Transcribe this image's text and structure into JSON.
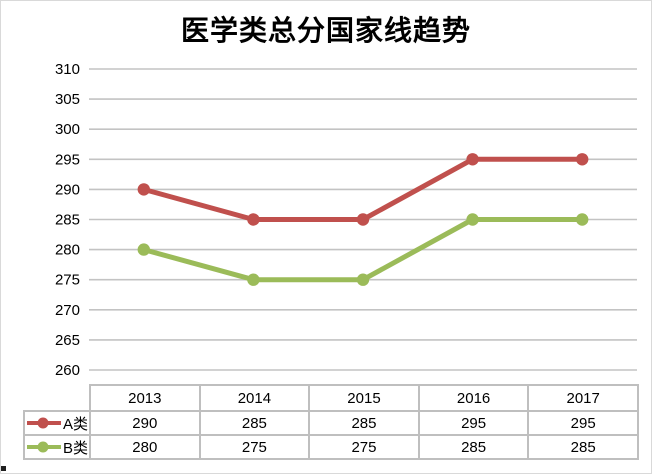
{
  "window": {
    "background": "#ffffff",
    "border_color": "#d9d9d9"
  },
  "chart_data": {
    "type": "line",
    "title": "医学类总分国家线趋势",
    "categories": [
      "2013",
      "2014",
      "2015",
      "2016",
      "2017"
    ],
    "series": [
      {
        "name": "A类",
        "color": "#C0504D",
        "values": [
          290,
          285,
          285,
          295,
          295
        ]
      },
      {
        "name": "B类",
        "color": "#9BBB59",
        "values": [
          280,
          275,
          275,
          285,
          285
        ]
      }
    ],
    "ylim": [
      260,
      310
    ],
    "yticks": [
      310,
      305,
      300,
      295,
      290,
      285,
      280,
      275,
      270,
      265,
      260
    ],
    "grid": "horizontal",
    "gridline_color": "#c3c3c3",
    "axis_text_color": "#000000",
    "legend_position": "data-table-left",
    "data_table": true,
    "table_border_color": "#bfbfbf"
  }
}
